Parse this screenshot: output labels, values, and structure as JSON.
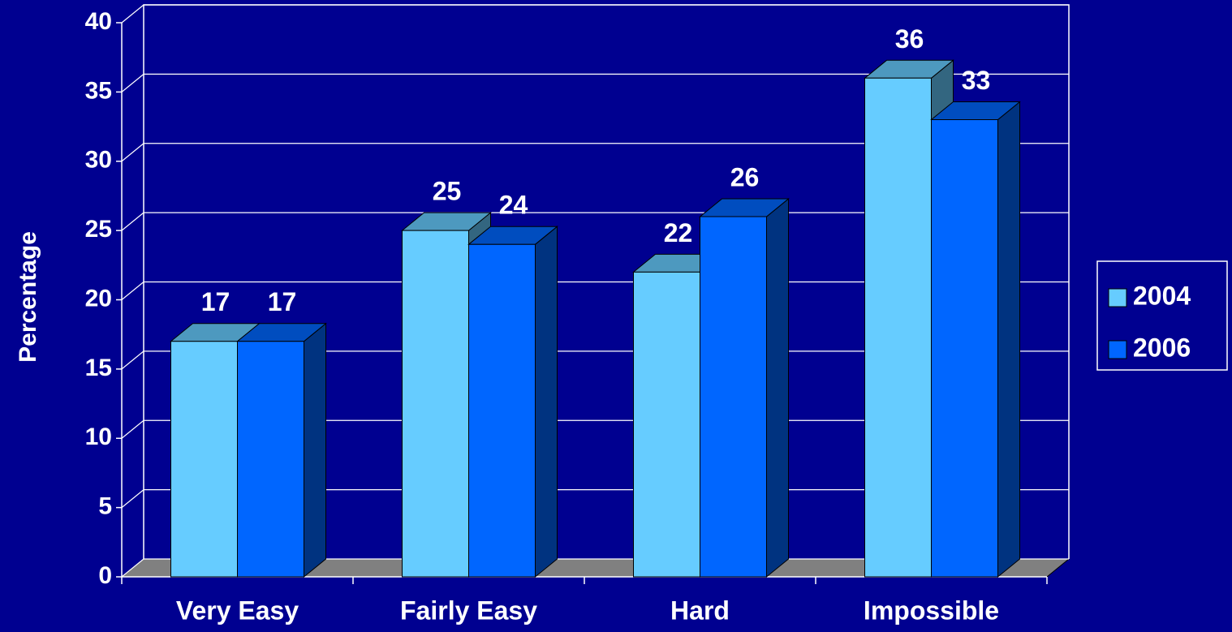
{
  "chart_data": {
    "type": "bar3d",
    "categories": [
      "Very Easy",
      "Fairly Easy",
      "Hard",
      "Impossible"
    ],
    "series": [
      {
        "name": "2004",
        "color": "#66ccff",
        "values": [
          17,
          25,
          22,
          36
        ]
      },
      {
        "name": "2006",
        "color": "#0066ff",
        "values": [
          17,
          24,
          26,
          33
        ]
      }
    ],
    "ylabel": "Percentage",
    "ylim": [
      0,
      40
    ],
    "yticks": [
      0,
      5,
      10,
      15,
      20,
      25,
      30,
      35,
      40
    ],
    "grid": true,
    "legend": "right"
  }
}
